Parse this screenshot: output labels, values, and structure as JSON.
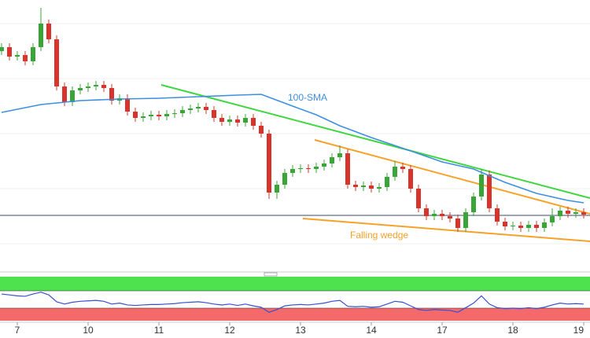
{
  "chart_data": {
    "type": "candlestick",
    "categories": [
      null,
      null,
      "7",
      null,
      null,
      null,
      null,
      null,
      null,
      null,
      null,
      "10",
      null,
      null,
      null,
      null,
      null,
      null,
      null,
      null,
      "11",
      null,
      null,
      null,
      null,
      null,
      null,
      null,
      null,
      "12",
      null,
      null,
      null,
      null,
      null,
      null,
      null,
      null,
      "13",
      null,
      null,
      null,
      null,
      null,
      null,
      null,
      null,
      "14",
      null,
      null,
      null,
      null,
      null,
      null,
      null,
      null,
      "17",
      null,
      null,
      null,
      null,
      null,
      null,
      null,
      null,
      "18",
      null,
      null,
      null,
      null,
      null,
      null,
      null,
      null,
      "19"
    ],
    "open": [
      280,
      285,
      273,
      275,
      267,
      285,
      315,
      295,
      235,
      215,
      230,
      233,
      235,
      237,
      233,
      217,
      220,
      203,
      195,
      197,
      199,
      197,
      200,
      201,
      205,
      207,
      209,
      205,
      195,
      190,
      193,
      189,
      195,
      185,
      175,
      100,
      110,
      125,
      130,
      131,
      130,
      133,
      137,
      145,
      150,
      110,
      107,
      109,
      105,
      107,
      120,
      133,
      130,
      105,
      80,
      70,
      73,
      70,
      67,
      55,
      75,
      95,
      123,
      80,
      63,
      57,
      58,
      55,
      59,
      55,
      62,
      70,
      77,
      73,
      75
    ],
    "high": [
      290,
      290,
      280,
      280,
      290,
      335,
      320,
      300,
      240,
      235,
      238,
      240,
      242,
      242,
      238,
      225,
      225,
      208,
      202,
      204,
      204,
      205,
      206,
      210,
      212,
      214,
      214,
      210,
      200,
      198,
      198,
      200,
      200,
      190,
      180,
      115,
      130,
      135,
      136,
      136,
      138,
      142,
      150,
      160,
      155,
      115,
      114,
      114,
      112,
      125,
      140,
      138,
      135,
      110,
      85,
      78,
      78,
      75,
      72,
      80,
      100,
      130,
      128,
      85,
      68,
      63,
      63,
      64,
      64,
      67,
      80,
      82,
      82,
      80,
      80
    ],
    "low": [
      275,
      268,
      268,
      262,
      262,
      280,
      290,
      230,
      210,
      210,
      225,
      228,
      230,
      228,
      212,
      212,
      198,
      190,
      190,
      192,
      192,
      192,
      195,
      196,
      200,
      202,
      200,
      190,
      185,
      185,
      184,
      184,
      180,
      170,
      92,
      92,
      105,
      120,
      125,
      125,
      125,
      128,
      132,
      140,
      105,
      102,
      102,
      100,
      100,
      102,
      115,
      125,
      100,
      75,
      65,
      65,
      65,
      62,
      50,
      50,
      70,
      90,
      75,
      58,
      52,
      52,
      50,
      50,
      50,
      50,
      57,
      65,
      68,
      68,
      67
    ],
    "close": [
      285,
      273,
      275,
      267,
      285,
      315,
      295,
      235,
      215,
      230,
      233,
      235,
      237,
      233,
      217,
      220,
      203,
      195,
      197,
      199,
      197,
      200,
      201,
      205,
      207,
      209,
      205,
      195,
      190,
      193,
      189,
      195,
      185,
      175,
      100,
      110,
      125,
      130,
      131,
      130,
      133,
      137,
      145,
      150,
      110,
      107,
      109,
      105,
      107,
      120,
      133,
      130,
      105,
      80,
      70,
      73,
      70,
      67,
      55,
      75,
      95,
      123,
      80,
      63,
      57,
      58,
      55,
      59,
      55,
      62,
      70,
      77,
      73,
      75,
      72
    ],
    "up_color": "#3aa537",
    "down_color": "#d9342b",
    "ylim": [
      0,
      345
    ],
    "overlays": [
      {
        "name": "100-SMA",
        "color": "#3d8fe0",
        "x": [
          0,
          5,
          10,
          15,
          20,
          25,
          30,
          33,
          37,
          40,
          43,
          47,
          52,
          56,
          60,
          64,
          68,
          72,
          74
        ],
        "values": [
          202,
          212,
          217,
          219,
          220,
          222,
          224,
          225,
          210,
          199,
          185,
          170,
          153,
          139,
          130,
          113,
          99,
          90,
          87
        ]
      }
    ],
    "annotations": [
      "Falling wedge"
    ],
    "rsi": {
      "color": "#3a4fd0",
      "ylim": [
        0,
        100
      ],
      "values": [
        62,
        60,
        58,
        57,
        62,
        66,
        60,
        45,
        40,
        44,
        46,
        47,
        48,
        46,
        40,
        42,
        38,
        37,
        38,
        39,
        39,
        40,
        41,
        43,
        44,
        45,
        43,
        40,
        38,
        40,
        37,
        40,
        36,
        33,
        22,
        28,
        36,
        38,
        39,
        38,
        40,
        42,
        46,
        48,
        35,
        34,
        35,
        33,
        34,
        40,
        46,
        44,
        36,
        28,
        26,
        28,
        27,
        26,
        22,
        32,
        42,
        58,
        40,
        32,
        30,
        31,
        30,
        32,
        30,
        33,
        38,
        42,
        40,
        41,
        40
      ]
    }
  }
}
